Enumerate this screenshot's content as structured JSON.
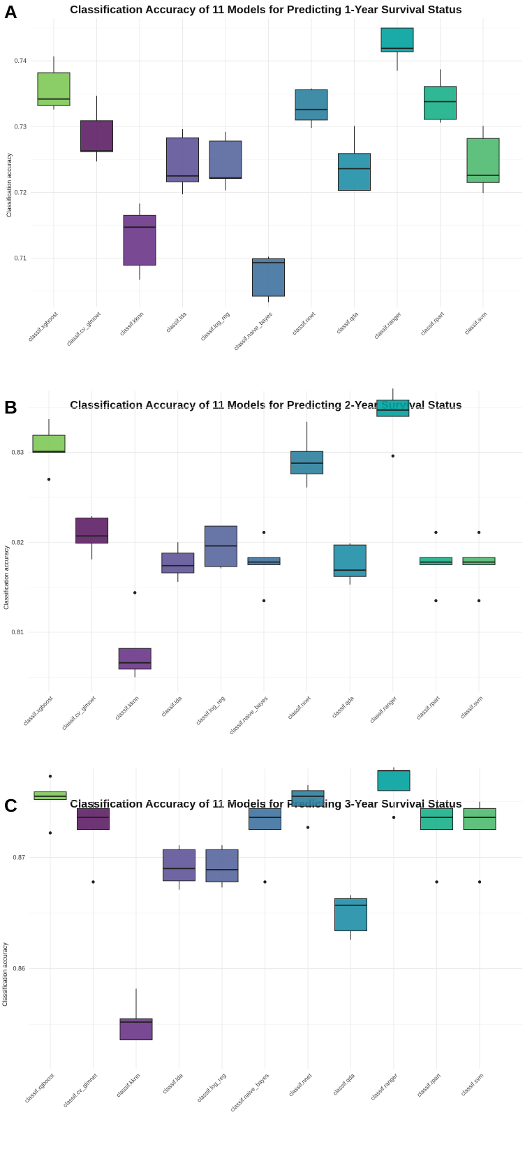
{
  "panels": [
    {
      "letter": "A",
      "title": "Classification Accuracy of 11 Models for Predicting 1-Year Survival Status",
      "ylabel": "Classification accuracy"
    },
    {
      "letter": "B",
      "title": "Classification Accuracy of 11 Models for Predicting 2-Year Survival Status",
      "ylabel": "Classification accuracy"
    },
    {
      "letter": "C",
      "title": "Classification Accuracy of 11 Models for Predicting 3-Year Survival Status",
      "ylabel": "Classification accuracy"
    }
  ],
  "chart_data": [
    {
      "type": "box",
      "title": "Classification Accuracy of 11 Models for Predicting 1-Year Survival Status",
      "xlabel": "",
      "ylabel": "Classification accuracy",
      "ylim": [
        0.7025,
        0.7465
      ],
      "yticks": [
        0.71,
        0.72,
        0.73,
        0.74
      ],
      "yticklabels": [
        "0.71",
        "0.72",
        "0.73",
        "0.74"
      ],
      "grid": true,
      "legend": "none",
      "categories": [
        "classif.xgboost",
        "classif.cv_glmnet",
        "classif.kknn",
        "classif.lda",
        "classif.log_reg",
        "classif.naive_bayes",
        "classif.nnet",
        "classif.qda",
        "classif.ranger",
        "classif.rpart",
        "classif.svm"
      ],
      "colors": [
        "#7ec855",
        "#5e1f66",
        "#6a3588",
        "#5f5498",
        "#56669d",
        "#3f729e",
        "#2c819e",
        "#1f8fa6",
        "#01a19e",
        "#1ab089",
        "#4eba6f"
      ],
      "boxes": [
        {
          "whisker_low": 0.7326,
          "q1": 0.7332,
          "median": 0.7342,
          "q3": 0.7382,
          "whisker_high": 0.7407,
          "outliers": []
        },
        {
          "whisker_low": 0.7247,
          "q1": 0.7262,
          "median": 0.7263,
          "q3": 0.7309,
          "whisker_high": 0.7347,
          "outliers": []
        },
        {
          "whisker_low": 0.7067,
          "q1": 0.7089,
          "median": 0.7147,
          "q3": 0.7165,
          "whisker_high": 0.7183,
          "outliers": []
        },
        {
          "whisker_low": 0.7197,
          "q1": 0.7216,
          "median": 0.7225,
          "q3": 0.7283,
          "whisker_high": 0.7296,
          "outliers": []
        },
        {
          "whisker_low": 0.7203,
          "q1": 0.7221,
          "median": 0.7222,
          "q3": 0.7278,
          "whisker_high": 0.7292,
          "outliers": []
        },
        {
          "whisker_low": 0.7033,
          "q1": 0.7042,
          "median": 0.7093,
          "q3": 0.7099,
          "whisker_high": 0.7102,
          "outliers": []
        },
        {
          "whisker_low": 0.7298,
          "q1": 0.731,
          "median": 0.7326,
          "q3": 0.7356,
          "whisker_high": 0.7358,
          "outliers": []
        },
        {
          "whisker_low": 0.7203,
          "q1": 0.7203,
          "median": 0.7236,
          "q3": 0.7259,
          "whisker_high": 0.7301,
          "outliers": []
        },
        {
          "whisker_low": 0.7385,
          "q1": 0.7414,
          "median": 0.7419,
          "q3": 0.745,
          "whisker_high": 0.745,
          "outliers": []
        },
        {
          "whisker_low": 0.7306,
          "q1": 0.7311,
          "median": 0.7338,
          "q3": 0.7361,
          "whisker_high": 0.7387,
          "outliers": []
        },
        {
          "whisker_low": 0.7199,
          "q1": 0.7215,
          "median": 0.7226,
          "q3": 0.7282,
          "whisker_high": 0.7301,
          "outliers": []
        }
      ]
    },
    {
      "type": "box",
      "title": "Classification Accuracy of 11 Models for Predicting 2-Year Survival Status",
      "xlabel": "",
      "ylabel": "Classification accuracy",
      "ylim": [
        0.8034,
        0.8368
      ],
      "yticks": [
        0.81,
        0.82,
        0.83
      ],
      "yticklabels": [
        "0.81",
        "0.82",
        "0.83"
      ],
      "grid": true,
      "legend": "none",
      "categories": [
        "classif.xgboost",
        "classif.cv_glmnet",
        "classif.kknn",
        "classif.lda",
        "classif.log_reg",
        "classif.naive_bayes",
        "classif.nnet",
        "classif.qda",
        "classif.ranger",
        "classif.rpart",
        "classif.svm"
      ],
      "colors": [
        "#7ec855",
        "#5e1f66",
        "#6a3588",
        "#5f5498",
        "#56669d",
        "#3f729e",
        "#2c819e",
        "#1f8fa6",
        "#01a19e",
        "#1ab089",
        "#4eba6f"
      ],
      "boxes": [
        {
          "whisker_low": 0.83,
          "q1": 0.83,
          "median": 0.8301,
          "q3": 0.8319,
          "whisker_high": 0.8337,
          "outliers": [
            0.827
          ]
        },
        {
          "whisker_low": 0.8181,
          "q1": 0.8199,
          "median": 0.8207,
          "q3": 0.8227,
          "whisker_high": 0.8229,
          "outliers": []
        },
        {
          "whisker_low": 0.805,
          "q1": 0.8059,
          "median": 0.8066,
          "q3": 0.8082,
          "whisker_high": 0.8082,
          "outliers": [
            0.8144
          ]
        },
        {
          "whisker_low": 0.8156,
          "q1": 0.8166,
          "median": 0.8174,
          "q3": 0.8188,
          "whisker_high": 0.82,
          "outliers": []
        },
        {
          "whisker_low": 0.8171,
          "q1": 0.8173,
          "median": 0.8196,
          "q3": 0.8218,
          "whisker_high": 0.8218,
          "outliers": []
        },
        {
          "whisker_low": 0.8175,
          "q1": 0.8175,
          "median": 0.8178,
          "q3": 0.8183,
          "whisker_high": 0.8183,
          "outliers": [
            0.8211,
            0.8135
          ]
        },
        {
          "whisker_low": 0.8261,
          "q1": 0.8276,
          "median": 0.8288,
          "q3": 0.8301,
          "whisker_high": 0.8334,
          "outliers": []
        },
        {
          "whisker_low": 0.8153,
          "q1": 0.8162,
          "median": 0.8169,
          "q3": 0.8197,
          "whisker_high": 0.8199,
          "outliers": []
        },
        {
          "whisker_low": 0.834,
          "q1": 0.834,
          "median": 0.8347,
          "q3": 0.8358,
          "whisker_high": 0.8371,
          "outliers": [
            0.8296
          ]
        },
        {
          "whisker_low": 0.8175,
          "q1": 0.8175,
          "median": 0.8178,
          "q3": 0.8183,
          "whisker_high": 0.8183,
          "outliers": [
            0.8211,
            0.8135
          ]
        },
        {
          "whisker_low": 0.8175,
          "q1": 0.8175,
          "median": 0.8178,
          "q3": 0.8183,
          "whisker_high": 0.8183,
          "outliers": [
            0.8211,
            0.8135
          ]
        }
      ]
    },
    {
      "type": "box",
      "title": "Classification Accuracy of 11 Models for Predicting 3-Year Survival Status",
      "xlabel": "",
      "ylabel": "Classification accuracy",
      "ylim": [
        0.851,
        0.878
      ],
      "yticks": [
        0.86,
        0.87
      ],
      "yticklabels": [
        "0.86",
        "0.87"
      ],
      "grid": true,
      "legend": "none",
      "categories": [
        "classif.xgboost",
        "classif.cv_glmnet",
        "classif.kknn",
        "classif.lda",
        "classif.log_reg",
        "classif.naive_bayes",
        "classif.nnet",
        "classif.qda",
        "classif.ranger",
        "classif.rpart",
        "classif.svm"
      ],
      "colors": [
        "#7ec855",
        "#5e1f66",
        "#6a3588",
        "#5f5498",
        "#56669d",
        "#3f729e",
        "#2c819e",
        "#1f8fa6",
        "#01a19e",
        "#1ab089",
        "#4eba6f"
      ],
      "boxes": [
        {
          "whisker_low": 0.8752,
          "q1": 0.8752,
          "median": 0.8755,
          "q3": 0.8759,
          "whisker_high": 0.8759,
          "outliers": [
            0.8773,
            0.8722
          ]
        },
        {
          "whisker_low": 0.8725,
          "q1": 0.8725,
          "median": 0.8736,
          "q3": 0.8744,
          "whisker_high": 0.875,
          "outliers": [
            0.8678
          ]
        },
        {
          "whisker_low": 0.8536,
          "q1": 0.8536,
          "median": 0.8552,
          "q3": 0.8555,
          "whisker_high": 0.8582,
          "outliers": []
        },
        {
          "whisker_low": 0.8671,
          "q1": 0.8679,
          "median": 0.869,
          "q3": 0.8707,
          "whisker_high": 0.8711,
          "outliers": []
        },
        {
          "whisker_low": 0.8673,
          "q1": 0.8678,
          "median": 0.8689,
          "q3": 0.8707,
          "whisker_high": 0.8711,
          "outliers": []
        },
        {
          "whisker_low": 0.8725,
          "q1": 0.8725,
          "median": 0.8736,
          "q3": 0.8744,
          "whisker_high": 0.875,
          "outliers": [
            0.8678
          ]
        },
        {
          "whisker_low": 0.8746,
          "q1": 0.8746,
          "median": 0.8755,
          "q3": 0.876,
          "whisker_high": 0.8765,
          "outliers": [
            0.8727
          ]
        },
        {
          "whisker_low": 0.8626,
          "q1": 0.8634,
          "median": 0.8657,
          "q3": 0.8663,
          "whisker_high": 0.8666,
          "outliers": []
        },
        {
          "whisker_low": 0.876,
          "q1": 0.876,
          "median": 0.8778,
          "q3": 0.8778,
          "whisker_high": 0.8781,
          "outliers": [
            0.8736
          ]
        },
        {
          "whisker_low": 0.8725,
          "q1": 0.8725,
          "median": 0.8736,
          "q3": 0.8744,
          "whisker_high": 0.875,
          "outliers": [
            0.8678
          ]
        },
        {
          "whisker_low": 0.8725,
          "q1": 0.8725,
          "median": 0.8736,
          "q3": 0.8744,
          "whisker_high": 0.875,
          "outliers": [
            0.8678
          ]
        }
      ]
    }
  ]
}
